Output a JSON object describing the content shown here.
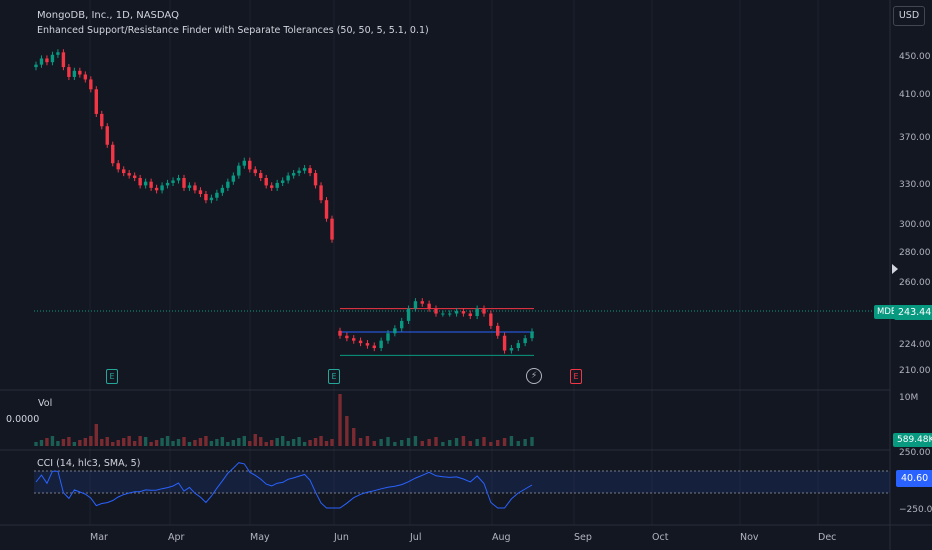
{
  "header": {
    "title": "MongoDB, Inc., 1D, NASDAQ",
    "indicator": "Enhanced Support/Resistance Finder with Separate Tolerances (50, 50, 5, 5.1, 0.1)",
    "currency": "USD"
  },
  "price_axis": {
    "ticks": [
      "450.00",
      "410.00",
      "370.00",
      "330.00",
      "300.00",
      "280.00",
      "260.00",
      "240.00",
      "224.00",
      "210.00"
    ]
  },
  "last_price": {
    "ticker": "MDB",
    "value": "243.44",
    "color": "#089981"
  },
  "volume": {
    "label": "Vol",
    "zero_label": "0.0000",
    "axis_max": "10M",
    "last_value": "589.48K"
  },
  "cci": {
    "label": "CCI (14, hlc3, SMA, 5)",
    "upper": "250.00",
    "lower": "−250.00",
    "last_value": "40.60",
    "color": "#2962ff"
  },
  "time_axis": {
    "ticks": [
      "Mar",
      "Apr",
      "May",
      "Jun",
      "Jul",
      "Aug",
      "Sep",
      "Oct",
      "Nov",
      "Dec"
    ]
  },
  "events": [
    {
      "type": "earnings",
      "label": "E",
      "color": "#26a69a"
    },
    {
      "type": "earnings",
      "label": "E",
      "color": "#26a69a"
    },
    {
      "type": "dividend",
      "label": "⚡",
      "color": "#b2b5be"
    },
    {
      "type": "earnings",
      "label": "E",
      "color": "#f23645"
    }
  ],
  "colors": {
    "up": "#089981",
    "down": "#f23645",
    "resistance": "#f23645",
    "support": "#089981",
    "midline": "#2962ff",
    "background": "#131722"
  },
  "chart_data": {
    "type": "candlestick",
    "x_range": [
      "Feb",
      "Dec"
    ],
    "ylim": [
      200,
      480
    ],
    "closes_approx": [
      460,
      465,
      462,
      468,
      470,
      458,
      450,
      455,
      452,
      448,
      440,
      420,
      410,
      395,
      380,
      375,
      372,
      370,
      368,
      362,
      365,
      360,
      358,
      362,
      364,
      366,
      368,
      360,
      362,
      358,
      355,
      350,
      352,
      356,
      360,
      365,
      370,
      378,
      382,
      375,
      372,
      368,
      362,
      360,
      364,
      366,
      370,
      372,
      374,
      376,
      372,
      362,
      350,
      335,
      318,
      240,
      238,
      236,
      234,
      232,
      230,
      236,
      242,
      246,
      252,
      262,
      268,
      266,
      262,
      258,
      258,
      258,
      260,
      258,
      256,
      262,
      258,
      248,
      240,
      228,
      230,
      234,
      238,
      243.44
    ],
    "resistance": 262,
    "support": 224,
    "midline": 243,
    "volume_axis_max": "10M",
    "cci_range": [
      -250,
      250
    ]
  }
}
